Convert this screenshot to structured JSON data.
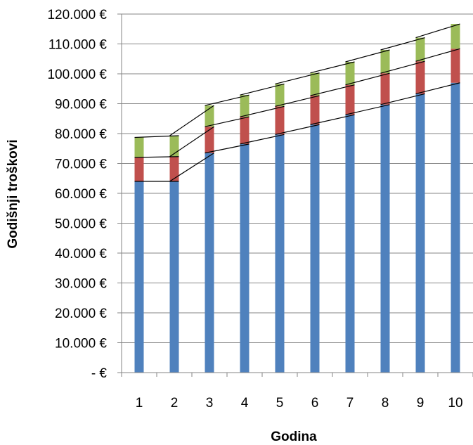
{
  "chart_data": {
    "type": "bar",
    "stacked": true,
    "title": "",
    "xlabel": "Godina",
    "ylabel": "Godišnji troškovi",
    "ylim": [
      0,
      120000
    ],
    "y_ticks": [
      0,
      10000,
      20000,
      30000,
      40000,
      50000,
      60000,
      70000,
      80000,
      90000,
      100000,
      110000,
      120000
    ],
    "y_tick_labels": [
      "-  €",
      "10.000 €",
      "20.000 €",
      "30.000 €",
      "40.000 €",
      "50.000 €",
      "60.000 €",
      "70.000 €",
      "80.000 €",
      "90.000 €",
      "100.000 €",
      "110.000 €",
      "120.000 €"
    ],
    "categories": [
      "1",
      "2",
      "3",
      "4",
      "5",
      "6",
      "7",
      "8",
      "9",
      "10"
    ],
    "grid": true,
    "legend": "none",
    "series_connector_lines": true,
    "series": [
      {
        "values": [
          64000,
          64000,
          73500,
          76500,
          79700,
          83000,
          86300,
          89700,
          93300,
          97000
        ],
        "color": "#4F81BD"
      },
      {
        "values": [
          8000,
          8300,
          8800,
          9100,
          9400,
          9700,
          10000,
          10500,
          10900,
          11400
        ],
        "color": "#C0504D"
      },
      {
        "values": [
          6700,
          7000,
          7100,
          7300,
          7500,
          7600,
          7700,
          7800,
          7900,
          8300
        ],
        "color": "#9BBB59"
      }
    ]
  }
}
